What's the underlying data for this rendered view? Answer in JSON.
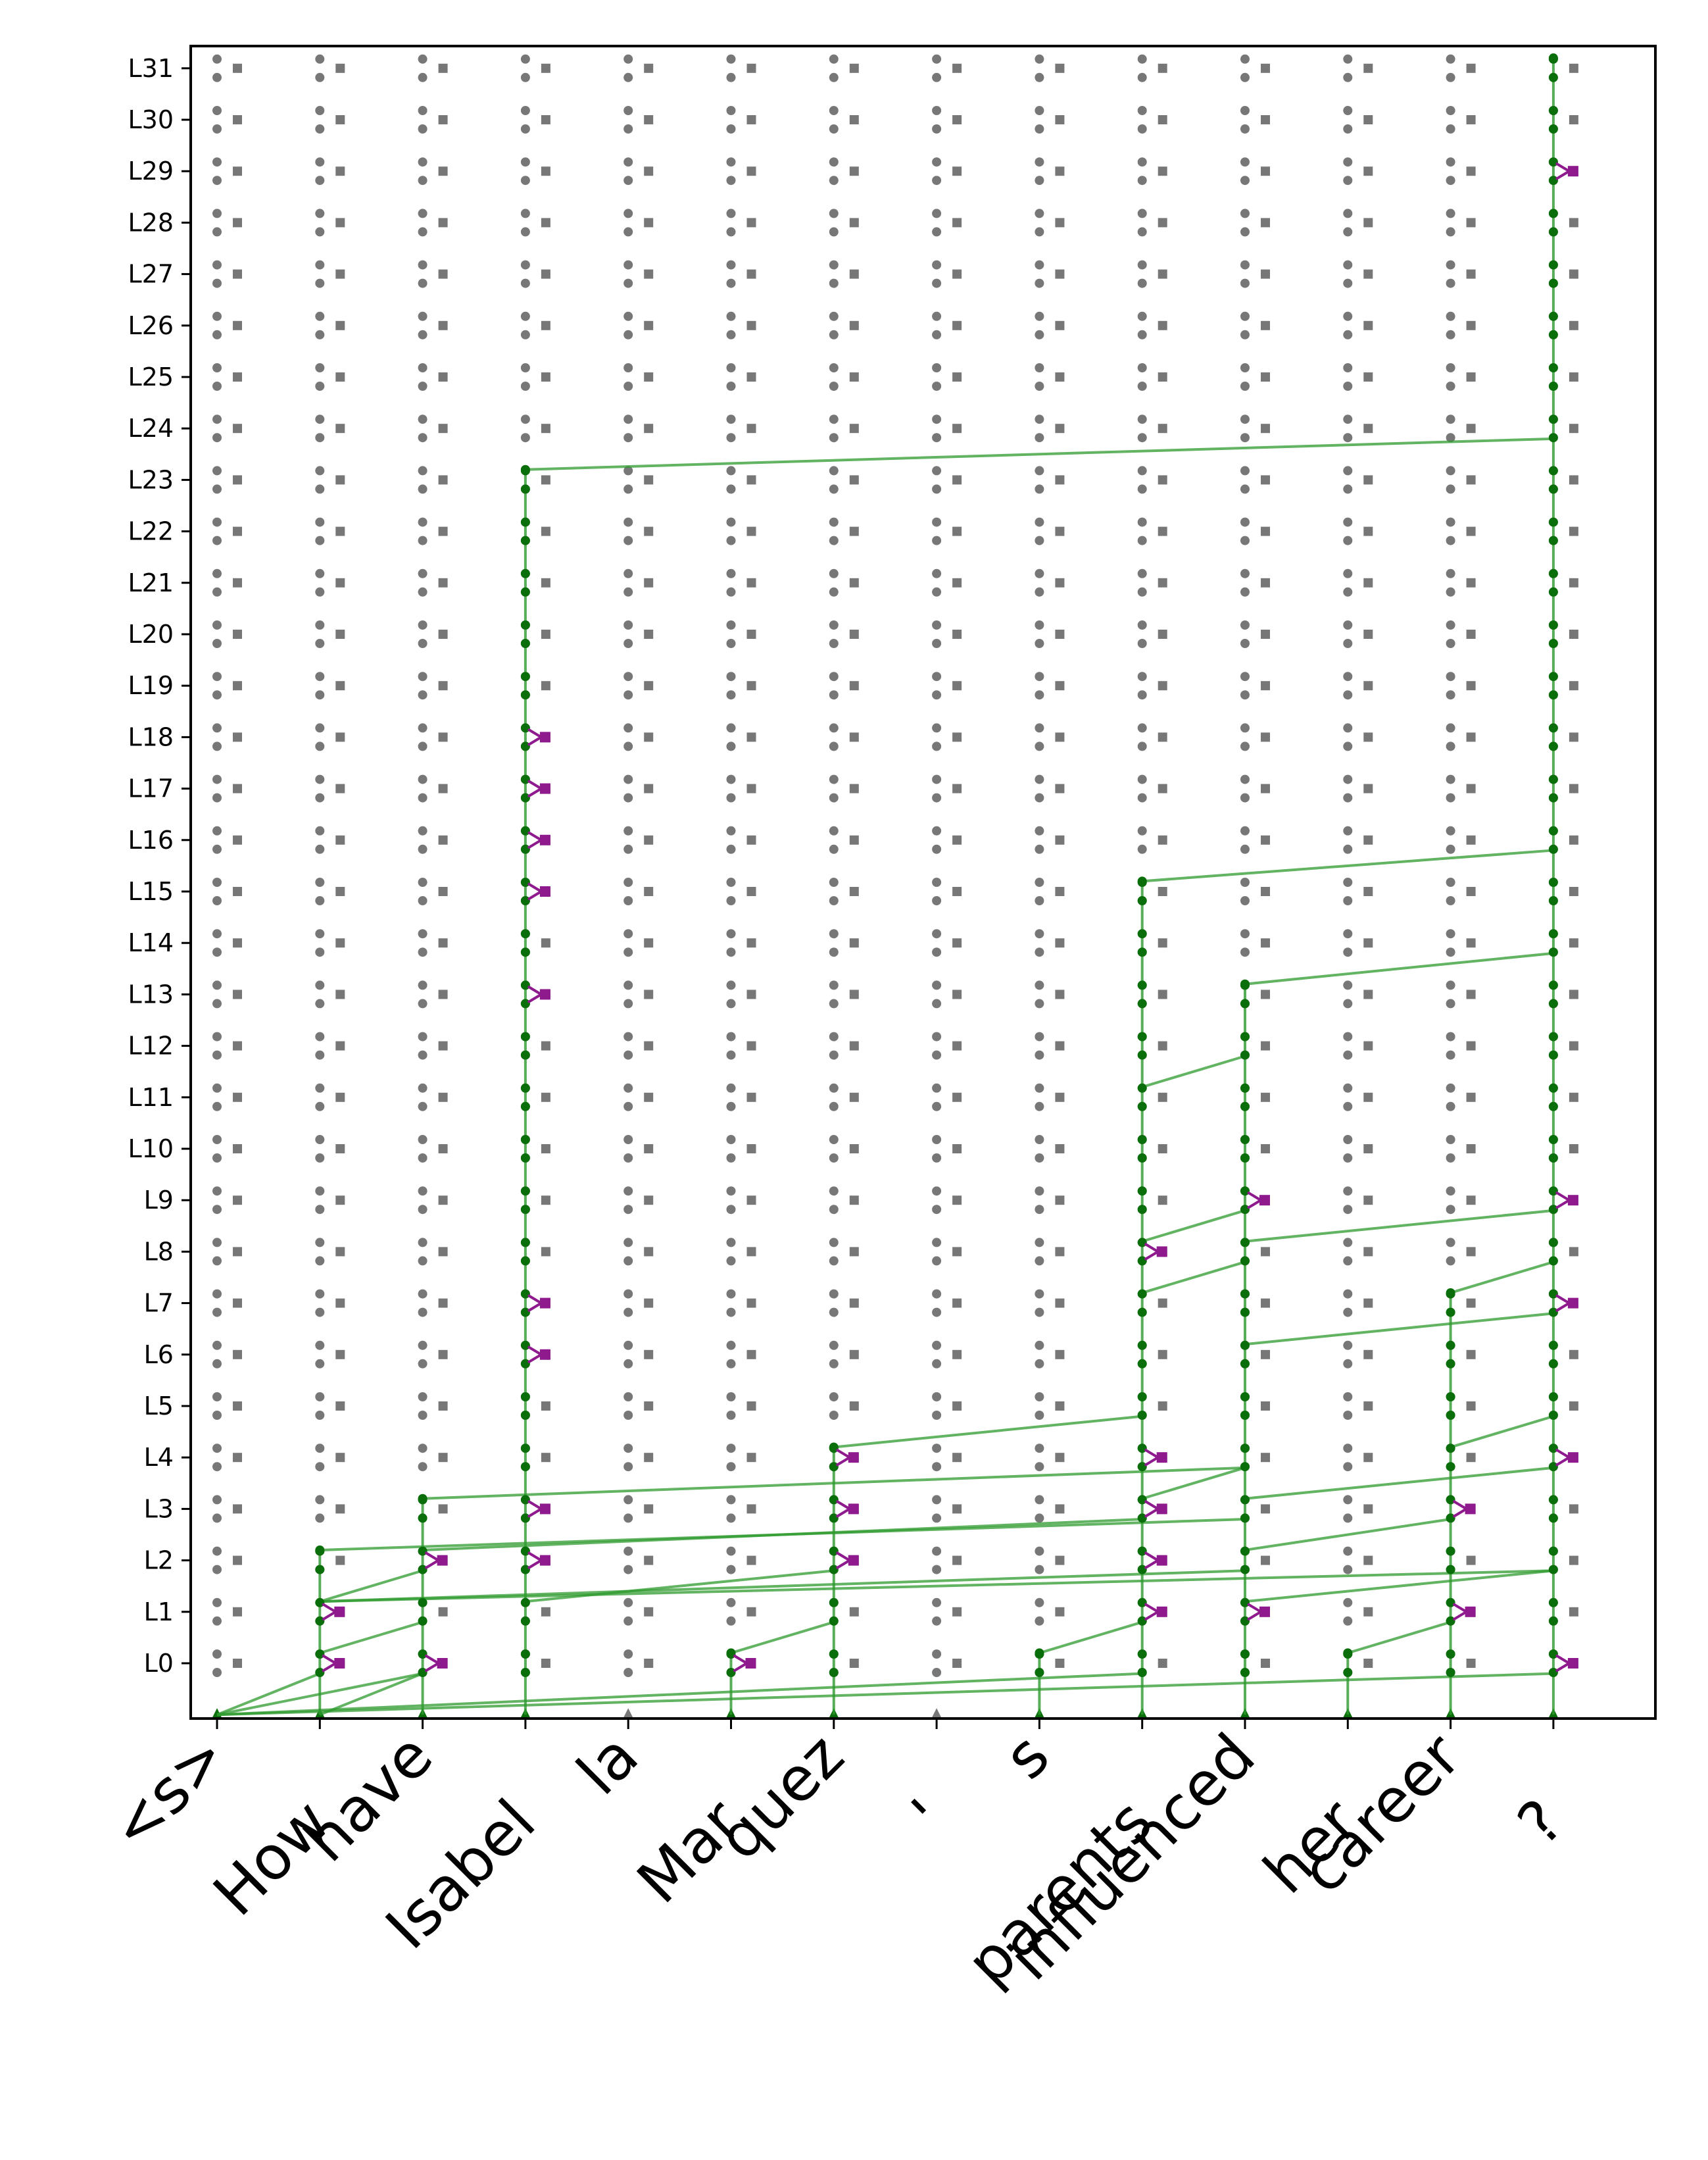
{
  "chart_data": {
    "type": "scatter",
    "title": "",
    "xlabel": "",
    "ylabel": "",
    "grid": false,
    "legend": "none",
    "tokens": [
      "<s>",
      "How",
      "have",
      "Isabel",
      "la",
      "Mar",
      "quez",
      "'",
      "s",
      "parents",
      "influenced",
      "her",
      "career",
      "?"
    ],
    "layers": [
      "L0",
      "L1",
      "L2",
      "L3",
      "L4",
      "L5",
      "L6",
      "L7",
      "L8",
      "L9",
      "L10",
      "L11",
      "L12",
      "L13",
      "L14",
      "L15",
      "L16",
      "L17",
      "L18",
      "L19",
      "L20",
      "L21",
      "L22",
      "L23",
      "L24",
      "L25",
      "L26",
      "L27",
      "L28",
      "L29",
      "L30",
      "L31"
    ],
    "colors": {
      "inactive": "#777777",
      "path": "#2e9a2e",
      "path_node": "#0a6e0a",
      "highlight": "#8e1a8e",
      "axis": "#000000"
    },
    "embedding_nodes_active": [
      0,
      1,
      2,
      3,
      5,
      6,
      8,
      9,
      10,
      11,
      12,
      13
    ],
    "token_paths": [
      {
        "token": 1,
        "from": -1,
        "to": 2.2
      },
      {
        "token": 2,
        "from": -1,
        "to": 3.2
      },
      {
        "token": 3,
        "from": -1,
        "to": 23.2
      },
      {
        "token": 5,
        "from": -1,
        "to": 0.2
      },
      {
        "token": 6,
        "from": -1,
        "to": 4.2
      },
      {
        "token": 8,
        "from": -1,
        "to": 0.2
      },
      {
        "token": 9,
        "from": -1,
        "to": 15.2
      },
      {
        "token": 10,
        "from": -1,
        "to": 13.2
      },
      {
        "token": 11,
        "from": -1,
        "to": 0.2
      },
      {
        "token": 12,
        "from": -1,
        "to": 7.2
      },
      {
        "token": 13,
        "from": -1,
        "to": 31.2
      }
    ],
    "edges": [
      {
        "from_token": 0,
        "from_layer": -1,
        "to_token": 1,
        "to_layer": -0.2
      },
      {
        "from_token": 0,
        "from_layer": -1,
        "to_token": 2,
        "to_layer": -0.2
      },
      {
        "from_token": 0,
        "from_layer": -1,
        "to_token": 9,
        "to_layer": -0.2
      },
      {
        "from_token": 0,
        "from_layer": -1,
        "to_token": 13,
        "to_layer": -0.2
      },
      {
        "from_token": 1,
        "from_layer": -1,
        "to_token": 2,
        "to_layer": -0.2
      },
      {
        "from_token": 1,
        "from_layer": 0.2,
        "to_token": 2,
        "to_layer": 0.8
      },
      {
        "from_token": 1,
        "from_layer": 1.2,
        "to_token": 13,
        "to_layer": 1.8
      },
      {
        "from_token": 1,
        "from_layer": 1.2,
        "to_token": 10,
        "to_layer": 1.8
      },
      {
        "from_token": 1,
        "from_layer": 2.2,
        "to_token": 10,
        "to_layer": 2.8
      },
      {
        "from_token": 2,
        "from_layer": 1.8,
        "to_token": 1,
        "to_layer": 1.2
      },
      {
        "from_token": 2,
        "from_layer": 2.2,
        "to_token": 9,
        "to_layer": 2.8
      },
      {
        "from_token": 2,
        "from_layer": 3.2,
        "to_token": 10,
        "to_layer": 3.8
      },
      {
        "from_token": 3,
        "from_layer": 1.2,
        "to_token": 6,
        "to_layer": 1.8
      },
      {
        "from_token": 3,
        "from_layer": 23.2,
        "to_token": 13,
        "to_layer": 23.8
      },
      {
        "from_token": 5,
        "from_layer": 0.2,
        "to_token": 6,
        "to_layer": 0.8
      },
      {
        "from_token": 6,
        "from_layer": 4.2,
        "to_token": 9,
        "to_layer": 4.8
      },
      {
        "from_token": 8,
        "from_layer": 0.2,
        "to_token": 9,
        "to_layer": 0.8
      },
      {
        "from_token": 9,
        "from_layer": 3.2,
        "to_token": 10,
        "to_layer": 3.8
      },
      {
        "from_token": 9,
        "from_layer": 7.2,
        "to_token": 10,
        "to_layer": 7.8
      },
      {
        "from_token": 9,
        "from_layer": 8.2,
        "to_token": 10,
        "to_layer": 8.8
      },
      {
        "from_token": 9,
        "from_layer": 11.2,
        "to_token": 10,
        "to_layer": 11.8
      },
      {
        "from_token": 9,
        "from_layer": 15.2,
        "to_token": 13,
        "to_layer": 15.8
      },
      {
        "from_token": 10,
        "from_layer": 2.2,
        "to_token": 12,
        "to_layer": 2.8
      },
      {
        "from_token": 10,
        "from_layer": 3.2,
        "to_token": 13,
        "to_layer": 3.8
      },
      {
        "from_token": 10,
        "from_layer": 6.2,
        "to_token": 13,
        "to_layer": 6.8
      },
      {
        "from_token": 10,
        "from_layer": 8.2,
        "to_token": 13,
        "to_layer": 8.8
      },
      {
        "from_token": 10,
        "from_layer": 13.2,
        "to_token": 13,
        "to_layer": 13.8
      },
      {
        "from_token": 10,
        "from_layer": 1.2,
        "to_token": 13,
        "to_layer": 1.8
      },
      {
        "from_token": 11,
        "from_layer": 0.2,
        "to_token": 12,
        "to_layer": 0.8
      },
      {
        "from_token": 12,
        "from_layer": 4.2,
        "to_token": 13,
        "to_layer": 4.8
      },
      {
        "from_token": 12,
        "from_layer": 7.2,
        "to_token": 13,
        "to_layer": 7.8
      }
    ],
    "highlights": [
      {
        "token": 1,
        "layer": 0
      },
      {
        "token": 1,
        "layer": 1
      },
      {
        "token": 2,
        "layer": 0
      },
      {
        "token": 2,
        "layer": 2
      },
      {
        "token": 3,
        "layer": 2
      },
      {
        "token": 3,
        "layer": 3
      },
      {
        "token": 3,
        "layer": 6
      },
      {
        "token": 3,
        "layer": 7
      },
      {
        "token": 3,
        "layer": 13
      },
      {
        "token": 3,
        "layer": 15
      },
      {
        "token": 3,
        "layer": 16
      },
      {
        "token": 3,
        "layer": 17
      },
      {
        "token": 3,
        "layer": 18
      },
      {
        "token": 5,
        "layer": 0
      },
      {
        "token": 6,
        "layer": 2
      },
      {
        "token": 6,
        "layer": 3
      },
      {
        "token": 6,
        "layer": 4
      },
      {
        "token": 9,
        "layer": 1
      },
      {
        "token": 9,
        "layer": 2
      },
      {
        "token": 9,
        "layer": 3
      },
      {
        "token": 9,
        "layer": 4
      },
      {
        "token": 9,
        "layer": 8
      },
      {
        "token": 10,
        "layer": 1
      },
      {
        "token": 10,
        "layer": 9
      },
      {
        "token": 12,
        "layer": 1
      },
      {
        "token": 12,
        "layer": 3
      },
      {
        "token": 13,
        "layer": 0
      },
      {
        "token": 13,
        "layer": 4
      },
      {
        "token": 13,
        "layer": 7
      },
      {
        "token": 13,
        "layer": 9
      },
      {
        "token": 13,
        "layer": 29
      }
    ]
  }
}
